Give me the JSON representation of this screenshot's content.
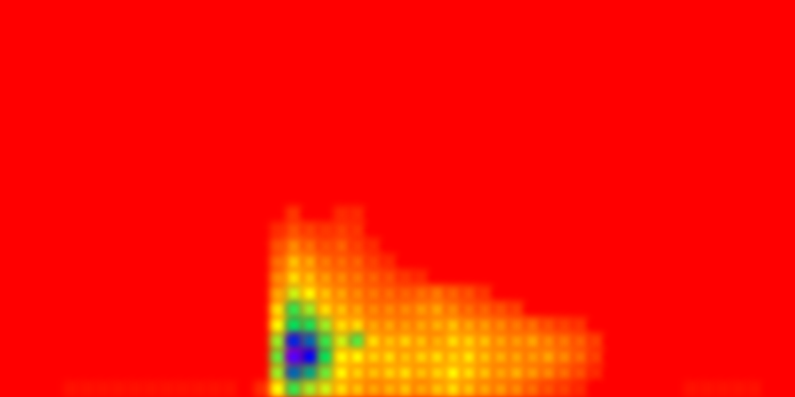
{
  "chart_data": {
    "type": "heatmap",
    "tick_labels": false,
    "grid": false,
    "color_range": [
      0,
      100
    ],
    "cells": [
      [
        0,
        0,
        0,
        0,
        0,
        0,
        0,
        0,
        0,
        0,
        0,
        0,
        0,
        0,
        0,
        0,
        0,
        0,
        0,
        0,
        0,
        0,
        0,
        0,
        0,
        0,
        0,
        0,
        0,
        0,
        0,
        0,
        0,
        0,
        0,
        0,
        0,
        0,
        0,
        0,
        0,
        0,
        0,
        0,
        0,
        0,
        0,
        0,
        0,
        0
      ],
      [
        0,
        0,
        0,
        0,
        0,
        0,
        0,
        0,
        0,
        0,
        0,
        0,
        0,
        0,
        0,
        0,
        0,
        0,
        0,
        0,
        0,
        0,
        0,
        0,
        0,
        0,
        0,
        0,
        0,
        0,
        0,
        0,
        0,
        0,
        0,
        0,
        0,
        0,
        0,
        0,
        0,
        0,
        0,
        0,
        0,
        0,
        0,
        0,
        0,
        0
      ],
      [
        0,
        0,
        0,
        0,
        0,
        0,
        0,
        0,
        0,
        0,
        0,
        0,
        0,
        0,
        0,
        0,
        0,
        0,
        0,
        0,
        0,
        0,
        0,
        0,
        0,
        0,
        0,
        0,
        0,
        0,
        0,
        0,
        0,
        0,
        0,
        0,
        0,
        0,
        0,
        0,
        0,
        0,
        0,
        0,
        0,
        0,
        0,
        0,
        0,
        0
      ],
      [
        0,
        0,
        0,
        0,
        0,
        0,
        0,
        0,
        0,
        0,
        0,
        0,
        0,
        0,
        0,
        0,
        0,
        0,
        0,
        0,
        0,
        0,
        0,
        0,
        0,
        0,
        0,
        0,
        0,
        0,
        0,
        0,
        0,
        0,
        0,
        0,
        0,
        0,
        0,
        0,
        0,
        0,
        0,
        0,
        0,
        0,
        0,
        0,
        0,
        0
      ],
      [
        0,
        0,
        0,
        0,
        0,
        0,
        0,
        0,
        0,
        0,
        0,
        0,
        0,
        0,
        0,
        0,
        0,
        0,
        0,
        0,
        0,
        0,
        0,
        0,
        0,
        0,
        0,
        0,
        0,
        0,
        0,
        0,
        0,
        0,
        0,
        0,
        0,
        0,
        0,
        0,
        0,
        0,
        0,
        0,
        0,
        0,
        0,
        0,
        0,
        0
      ],
      [
        0,
        0,
        0,
        0,
        0,
        0,
        0,
        0,
        0,
        0,
        0,
        0,
        0,
        0,
        0,
        0,
        0,
        0,
        0,
        0,
        0,
        0,
        0,
        0,
        0,
        0,
        0,
        0,
        0,
        0,
        0,
        0,
        0,
        0,
        0,
        0,
        0,
        0,
        0,
        0,
        0,
        0,
        0,
        0,
        0,
        0,
        0,
        0,
        0,
        0
      ],
      [
        0,
        0,
        0,
        0,
        0,
        0,
        0,
        0,
        0,
        0,
        0,
        0,
        0,
        0,
        0,
        0,
        0,
        0,
        0,
        0,
        0,
        0,
        0,
        0,
        0,
        0,
        0,
        0,
        0,
        0,
        0,
        0,
        0,
        0,
        0,
        0,
        0,
        0,
        0,
        0,
        0,
        0,
        0,
        0,
        0,
        0,
        0,
        0,
        0,
        0
      ],
      [
        0,
        0,
        0,
        0,
        0,
        0,
        0,
        0,
        0,
        0,
        0,
        0,
        0,
        0,
        0,
        0,
        0,
        0,
        0,
        0,
        0,
        0,
        0,
        0,
        0,
        0,
        0,
        0,
        0,
        0,
        0,
        0,
        0,
        0,
        0,
        0,
        0,
        0,
        0,
        0,
        0,
        0,
        0,
        0,
        0,
        0,
        0,
        0,
        0,
        0
      ],
      [
        0,
        0,
        0,
        0,
        0,
        0,
        0,
        0,
        0,
        0,
        0,
        0,
        0,
        0,
        0,
        0,
        0,
        0,
        0,
        0,
        0,
        0,
        0,
        0,
        0,
        0,
        0,
        0,
        0,
        0,
        0,
        0,
        0,
        0,
        0,
        0,
        0,
        0,
        0,
        0,
        0,
        0,
        0,
        0,
        0,
        0,
        0,
        0,
        0,
        0
      ],
      [
        0,
        0,
        0,
        0,
        0,
        0,
        0,
        0,
        0,
        0,
        0,
        0,
        0,
        0,
        0,
        0,
        0,
        0,
        0,
        0,
        0,
        0,
        0,
        0,
        0,
        0,
        0,
        0,
        0,
        0,
        0,
        0,
        0,
        0,
        0,
        0,
        0,
        0,
        0,
        0,
        0,
        0,
        0,
        0,
        0,
        0,
        0,
        0,
        0,
        0
      ],
      [
        0,
        0,
        0,
        0,
        0,
        0,
        0,
        0,
        0,
        0,
        0,
        0,
        0,
        0,
        0,
        0,
        0,
        0,
        0,
        0,
        0,
        0,
        0,
        0,
        0,
        0,
        0,
        0,
        0,
        0,
        0,
        0,
        0,
        0,
        0,
        0,
        0,
        0,
        0,
        0,
        0,
        0,
        0,
        0,
        0,
        0,
        0,
        0,
        0,
        0
      ],
      [
        0,
        0,
        0,
        0,
        0,
        0,
        0,
        0,
        0,
        0,
        0,
        0,
        0,
        0,
        0,
        0,
        0,
        0,
        0,
        0,
        0,
        0,
        0,
        0,
        0,
        0,
        0,
        0,
        0,
        0,
        0,
        0,
        0,
        0,
        0,
        0,
        0,
        0,
        0,
        0,
        0,
        0,
        0,
        0,
        0,
        0,
        0,
        0,
        0,
        0
      ],
      [
        0,
        0,
        0,
        0,
        0,
        0,
        0,
        0,
        0,
        0,
        0,
        0,
        0,
        0,
        0,
        0,
        0,
        0,
        0,
        0,
        0,
        0,
        0,
        0,
        0,
        0,
        0,
        0,
        0,
        0,
        0,
        0,
        0,
        0,
        0,
        0,
        0,
        0,
        0,
        0,
        0,
        0,
        0,
        0,
        0,
        0,
        0,
        0,
        0,
        0
      ],
      [
        0,
        0,
        0,
        0,
        0,
        0,
        0,
        0,
        0,
        0,
        0,
        0,
        0,
        0,
        0,
        0,
        0,
        0,
        10,
        0,
        0,
        8,
        8,
        0,
        0,
        0,
        0,
        0,
        0,
        0,
        0,
        0,
        0,
        0,
        0,
        0,
        0,
        0,
        0,
        0,
        0,
        0,
        0,
        0,
        0,
        0,
        0,
        0,
        0,
        0
      ],
      [
        0,
        0,
        0,
        0,
        0,
        0,
        0,
        0,
        0,
        0,
        0,
        0,
        0,
        0,
        0,
        0,
        0,
        8,
        15,
        12,
        10,
        12,
        10,
        0,
        0,
        0,
        0,
        0,
        0,
        0,
        0,
        0,
        0,
        0,
        0,
        0,
        0,
        0,
        0,
        0,
        0,
        0,
        0,
        0,
        0,
        0,
        0,
        0,
        0,
        0
      ],
      [
        0,
        0,
        0,
        0,
        0,
        0,
        0,
        0,
        0,
        0,
        0,
        0,
        0,
        0,
        0,
        0,
        0,
        15,
        25,
        20,
        15,
        18,
        12,
        8,
        0,
        0,
        0,
        0,
        0,
        0,
        0,
        0,
        0,
        0,
        0,
        0,
        0,
        0,
        0,
        0,
        0,
        0,
        0,
        0,
        0,
        0,
        0,
        0,
        0,
        0
      ],
      [
        0,
        0,
        0,
        0,
        0,
        0,
        0,
        0,
        0,
        0,
        0,
        0,
        0,
        0,
        0,
        0,
        0,
        20,
        35,
        30,
        22,
        20,
        18,
        12,
        8,
        0,
        0,
        0,
        0,
        0,
        0,
        0,
        0,
        0,
        0,
        0,
        0,
        0,
        0,
        0,
        0,
        0,
        0,
        0,
        0,
        0,
        0,
        0,
        0,
        0
      ],
      [
        0,
        0,
        0,
        0,
        0,
        0,
        0,
        0,
        0,
        0,
        0,
        0,
        0,
        0,
        0,
        0,
        0,
        25,
        40,
        35,
        28,
        25,
        22,
        18,
        15,
        10,
        8,
        0,
        0,
        0,
        0,
        0,
        0,
        0,
        0,
        0,
        0,
        0,
        0,
        0,
        0,
        0,
        0,
        0,
        0,
        0,
        0,
        0,
        0,
        0
      ],
      [
        0,
        0,
        0,
        0,
        0,
        0,
        0,
        0,
        0,
        0,
        0,
        0,
        0,
        0,
        0,
        0,
        0,
        30,
        50,
        45,
        35,
        30,
        25,
        22,
        20,
        18,
        20,
        22,
        18,
        15,
        10,
        0,
        0,
        0,
        0,
        0,
        0,
        0,
        0,
        0,
        0,
        0,
        0,
        0,
        0,
        0,
        0,
        0,
        0,
        0
      ],
      [
        0,
        0,
        0,
        0,
        0,
        0,
        0,
        0,
        0,
        0,
        0,
        0,
        0,
        0,
        0,
        0,
        0,
        40,
        65,
        55,
        40,
        35,
        30,
        25,
        25,
        25,
        28,
        30,
        25,
        20,
        18,
        15,
        12,
        0,
        0,
        0,
        0,
        0,
        0,
        0,
        0,
        0,
        0,
        0,
        0,
        0,
        0,
        0,
        0,
        0
      ],
      [
        0,
        0,
        0,
        0,
        0,
        0,
        0,
        0,
        0,
        0,
        0,
        0,
        0,
        0,
        0,
        0,
        0,
        45,
        70,
        68,
        55,
        40,
        40,
        30,
        30,
        28,
        30,
        32,
        35,
        30,
        28,
        25,
        22,
        20,
        15,
        12,
        10,
        0,
        0,
        0,
        0,
        0,
        0,
        0,
        0,
        0,
        0,
        0,
        0,
        0
      ],
      [
        0,
        0,
        0,
        0,
        0,
        0,
        0,
        0,
        0,
        0,
        0,
        0,
        0,
        0,
        0,
        0,
        0,
        55,
        85,
        80,
        65,
        50,
        62,
        40,
        35,
        38,
        35,
        32,
        40,
        38,
        35,
        30,
        28,
        30,
        25,
        22,
        18,
        12,
        0,
        0,
        0,
        0,
        0,
        0,
        0,
        0,
        0,
        0,
        0,
        0
      ],
      [
        0,
        0,
        0,
        0,
        0,
        0,
        0,
        0,
        0,
        0,
        0,
        0,
        0,
        0,
        0,
        0,
        0,
        60,
        92,
        88,
        70,
        45,
        45,
        38,
        40,
        35,
        38,
        40,
        38,
        42,
        35,
        32,
        30,
        28,
        30,
        25,
        20,
        12,
        0,
        0,
        0,
        0,
        0,
        0,
        0,
        0,
        0,
        0,
        0,
        0
      ],
      [
        0,
        0,
        0,
        0,
        0,
        0,
        0,
        0,
        0,
        0,
        0,
        0,
        0,
        0,
        0,
        0,
        0,
        55,
        80,
        75,
        60,
        45,
        38,
        35,
        38,
        40,
        35,
        38,
        45,
        40,
        35,
        30,
        32,
        28,
        25,
        20,
        15,
        8,
        0,
        0,
        0,
        0,
        0,
        0,
        0,
        0,
        0,
        0,
        0,
        0
      ],
      [
        0,
        0,
        0,
        0,
        3,
        3,
        3,
        3,
        3,
        3,
        3,
        3,
        3,
        3,
        3,
        0,
        8,
        45,
        65,
        55,
        50,
        40,
        35,
        30,
        32,
        35,
        30,
        35,
        40,
        35,
        30,
        28,
        25,
        20,
        15,
        12,
        8,
        0,
        0,
        0,
        0,
        0,
        0,
        3,
        3,
        3,
        3,
        3,
        0,
        0
      ]
    ]
  }
}
